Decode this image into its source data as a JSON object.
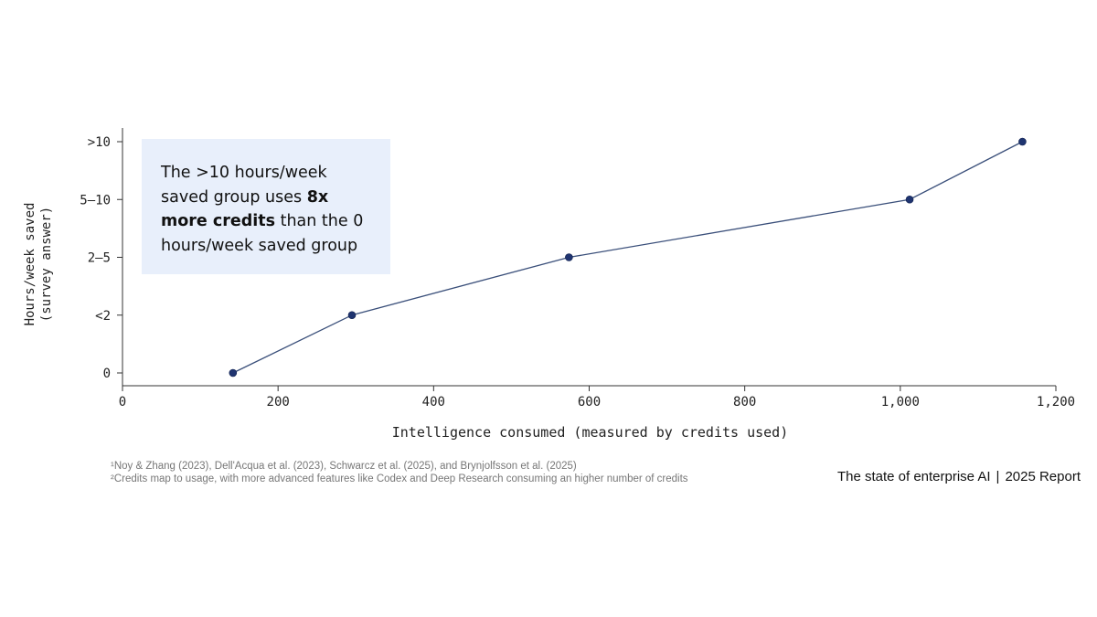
{
  "callout": {
    "part1": "The >10 hours/week saved group uses ",
    "bold": "8x more credits",
    "part2": " than the 0 hours/week saved group"
  },
  "footnotes": [
    "¹Noy & Zhang (2023), Dell'Acqua et al. (2023), Schwarcz et al. (2025), and Brynjolfsson et al. (2025)",
    "²Credits map to usage, with more advanced features like Codex and Deep Research consuming an higher number of credits"
  ],
  "brand": {
    "left": "The state of enterprise AI",
    "separator": "|",
    "right": "2025 Report"
  },
  "colors": {
    "line": "#3a4f7a",
    "point": "#1f3470",
    "callout_bg": "#e8effb"
  },
  "chart_data": {
    "type": "line",
    "title": "",
    "xlabel": "Intelligence consumed (measured by credits used)",
    "ylabel": "Hours/week saved",
    "ylabel_sub": "(survey answer)",
    "xlim": [
      0,
      1200
    ],
    "x_ticks": [
      0,
      200,
      400,
      600,
      800,
      1000,
      1200
    ],
    "x_tick_labels": [
      "0",
      "200",
      "400",
      "600",
      "800",
      "1,000",
      "1,200"
    ],
    "categories": [
      "0",
      "<2",
      "2–5",
      "5–10",
      ">10"
    ],
    "x": [
      142,
      295,
      574,
      1012,
      1157
    ],
    "grid": false,
    "legend": "none"
  }
}
